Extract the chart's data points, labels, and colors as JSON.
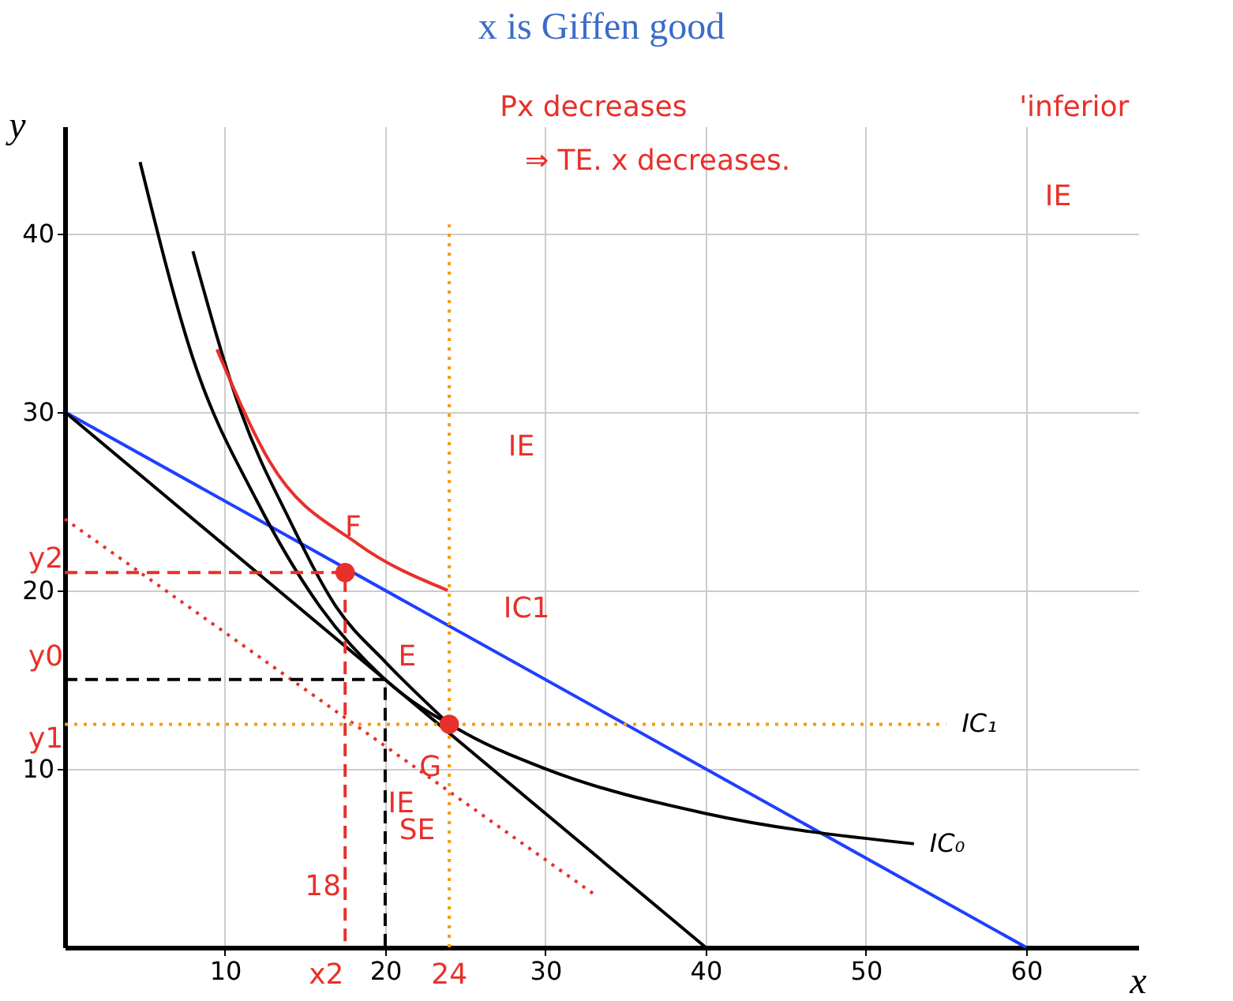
{
  "chart_data": {
    "type": "line",
    "title": "x is Giffen good",
    "xlabel": "x",
    "ylabel": "y",
    "xlim": [
      0,
      67
    ],
    "ylim": [
      0,
      46
    ],
    "xticks": [
      10,
      20,
      30,
      40,
      50,
      60
    ],
    "yticks": [
      10,
      20,
      30,
      40
    ],
    "grid": true,
    "series": [
      {
        "color": "#1f3fff",
        "x": [
          0,
          60
        ],
        "values": [
          30,
          0
        ]
      },
      {
        "color": "#000000",
        "x": [
          0,
          40
        ],
        "values": [
          30,
          0
        ]
      },
      {
        "color": "#e8302a",
        "line_style": "dotted",
        "x": [
          0,
          33
        ],
        "values": [
          24,
          3
        ]
      },
      {
        "name": "IC₀",
        "color": "#000000",
        "x": [
          4.7,
          8,
          12,
          16,
          20,
          25,
          30,
          40,
          53
        ],
        "values": [
          44,
          33,
          25,
          19,
          15,
          12,
          10,
          7.5,
          5.8
        ]
      },
      {
        "color": "#000000",
        "x": [
          8,
          11,
          14,
          17,
          20,
          24
        ],
        "values": [
          39,
          30,
          24,
          19,
          16,
          12.5
        ]
      },
      {
        "name": "IC₁",
        "color": "#f39c12",
        "line_style": "dotted",
        "x": [
          0,
          55
        ],
        "values": [
          12.5,
          12.5
        ]
      },
      {
        "color": "#f39c12",
        "line_style": "dotted",
        "x": [
          24,
          24
        ],
        "values": [
          0,
          40.5
        ]
      },
      {
        "color": "#e8302a",
        "x": [
          9.5,
          12.8,
          18.3,
          23.9
        ],
        "values": [
          33.5,
          27.2,
          22.6,
          20
        ]
      },
      {
        "color": "#e8302a",
        "line_style": "dashed",
        "x": [
          0,
          17.5,
          17.5
        ],
        "values": [
          21,
          21,
          0
        ]
      },
      {
        "color": "#000000",
        "line_style": "dashed",
        "x": [
          0,
          20,
          20
        ],
        "values": [
          15,
          15,
          0
        ]
      },
      {
        "type": "scatter",
        "color": "#e8302a",
        "x": [
          17.5,
          24
        ],
        "values": [
          21,
          12.5
        ]
      }
    ],
    "annotations": [
      {
        "text": "E",
        "x": 20,
        "y": 15
      },
      {
        "text": "F",
        "x": 17.5,
        "y": 21
      },
      {
        "text": "G",
        "x": 24,
        "y": 12.5
      },
      {
        "text": "IC1",
        "x": 23.9,
        "y": 20
      },
      {
        "text": "y2",
        "x": 0,
        "y": 21
      },
      {
        "text": "y0",
        "x": 0,
        "y": 15
      },
      {
        "text": "y1",
        "x": 0,
        "y": 12.5
      },
      {
        "text": "18",
        "x": 17.5,
        "y": 0
      },
      {
        "text": "x2",
        "x": 17.5,
        "y": 0
      },
      {
        "text": "24",
        "x": 24,
        "y": 0
      },
      "IE",
      "IE",
      "'inferior",
      "SE",
      "IE",
      "Px decreases",
      "⇒ TE. x decreases."
    ]
  }
}
